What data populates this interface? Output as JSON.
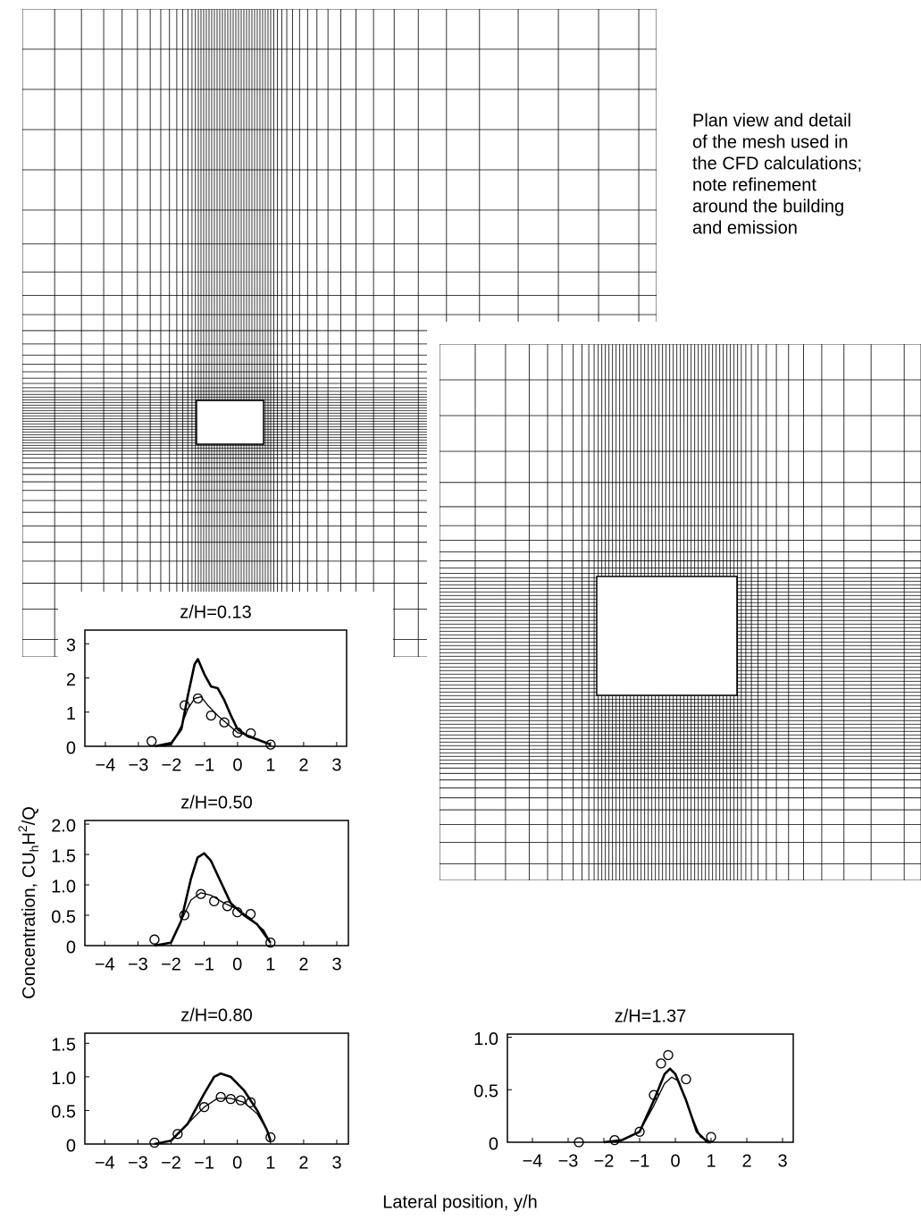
{
  "figure": {
    "annotation": [
      "Plan view and detail",
      "of the mesh used in",
      "the CFD calculations;",
      "note refinement",
      "around the building",
      "and emission"
    ],
    "xlabel": "Lateral position, y/h",
    "ylabel": {
      "text": "Concentration, CU",
      "sub": "h",
      "mid": "H",
      "sup": "2",
      "end": "/Q"
    }
  },
  "chart_data": [
    {
      "type": "line",
      "title": "z/H=0.13",
      "xlim": [
        -4.62,
        3.3
      ],
      "ylim": [
        0,
        3.4
      ],
      "xticks": [
        {
          "value": -4,
          "label": "−4"
        },
        {
          "value": -3,
          "label": "−3"
        },
        {
          "value": -2,
          "label": "−2"
        },
        {
          "value": -1,
          "label": "−1"
        },
        0,
        1,
        2,
        3
      ],
      "yticks": [
        0,
        1,
        2,
        3
      ],
      "series": [
        {
          "type": "line",
          "color": "#000000",
          "line_width": 2.6,
          "x": [
            -2.5,
            -2,
            -1.7,
            -1.5,
            -1.3,
            -1.2,
            -1.0,
            -0.8,
            -0.6,
            -0.4,
            -0.2,
            0,
            0.3,
            0.6,
            1
          ],
          "values": [
            0,
            0.1,
            0.5,
            1.5,
            2.4,
            2.55,
            2.1,
            1.75,
            1.7,
            1.35,
            0.9,
            0.5,
            0.3,
            0.2,
            0.05
          ]
        },
        {
          "type": "line",
          "color": "#000000",
          "line_width": 1.3,
          "x": [
            -2.5,
            -2,
            -1.7,
            -1.5,
            -1.3,
            -1.1,
            -0.9,
            -0.6,
            -0.3,
            0,
            0.4,
            0.7,
            1
          ],
          "values": [
            0,
            0.05,
            0.6,
            1.1,
            1.4,
            1.45,
            1.2,
            0.9,
            0.65,
            0.4,
            0.3,
            0.15,
            0.05
          ]
        },
        {
          "type": "scatter",
          "color": "#000000",
          "x": [
            -2.6,
            -1.6,
            -1.2,
            -0.8,
            -0.4,
            0,
            0.4,
            1
          ],
          "values": [
            0.15,
            1.2,
            1.4,
            0.9,
            0.7,
            0.4,
            0.38,
            0.05
          ]
        }
      ]
    },
    {
      "type": "line",
      "title": "z/H=0.50",
      "xlim": [
        -4.6,
        3.35
      ],
      "ylim": [
        0,
        2.06
      ],
      "xticks": [
        {
          "value": -4,
          "label": "−4"
        },
        {
          "value": -3,
          "label": "−3"
        },
        {
          "value": -2,
          "label": "−2"
        },
        {
          "value": -1,
          "label": "−1"
        },
        0,
        1,
        2,
        3
      ],
      "yticks": [
        0,
        0.5,
        {
          "value": 1,
          "label": "1.0"
        },
        1.5,
        {
          "value": 2,
          "label": "2.0"
        }
      ],
      "series": [
        {
          "type": "line",
          "color": "#000000",
          "line_width": 2.6,
          "x": [
            -2.5,
            -2,
            -1.7,
            -1.4,
            -1.2,
            -1,
            -0.8,
            -0.5,
            -0.2,
            0.2,
            0.6,
            1
          ],
          "values": [
            0,
            0.05,
            0.4,
            1.1,
            1.45,
            1.52,
            1.4,
            1.05,
            0.7,
            0.5,
            0.35,
            0.05
          ]
        },
        {
          "type": "line",
          "color": "#000000",
          "line_width": 1.3,
          "x": [
            -2.5,
            -2,
            -1.7,
            -1.4,
            -1.1,
            -0.8,
            -0.4,
            0,
            0.4,
            0.8,
            1
          ],
          "values": [
            0,
            0.05,
            0.4,
            0.75,
            0.87,
            0.83,
            0.7,
            0.6,
            0.45,
            0.25,
            0.05
          ]
        },
        {
          "type": "scatter",
          "color": "#000000",
          "x": [
            -2.5,
            -1.6,
            -1.1,
            -0.7,
            -0.3,
            0,
            0.4,
            1
          ],
          "values": [
            0.1,
            0.5,
            0.85,
            0.73,
            0.65,
            0.55,
            0.52,
            0.05
          ]
        }
      ]
    },
    {
      "type": "line",
      "title": "z/H=0.80",
      "xlim": [
        -4.6,
        3.35
      ],
      "ylim": [
        0,
        1.65
      ],
      "xticks": [
        {
          "value": -4,
          "label": "−4"
        },
        {
          "value": -3,
          "label": "−3"
        },
        {
          "value": -2,
          "label": "−2"
        },
        {
          "value": -1,
          "label": "−1"
        },
        0,
        1,
        2,
        3
      ],
      "yticks": [
        0,
        0.5,
        {
          "value": 1,
          "label": "1.0"
        },
        1.5
      ],
      "series": [
        {
          "type": "line",
          "color": "#000000",
          "line_width": 2.6,
          "x": [
            -2.5,
            -2,
            -1.5,
            -1,
            -0.7,
            -0.5,
            -0.2,
            0.2,
            0.6,
            0.9,
            1
          ],
          "values": [
            0,
            0.05,
            0.3,
            0.75,
            1.0,
            1.05,
            1.0,
            0.8,
            0.5,
            0.2,
            0.05
          ]
        },
        {
          "type": "line",
          "color": "#000000",
          "line_width": 1.3,
          "x": [
            -2.5,
            -2,
            -1.5,
            -1,
            -0.6,
            -0.2,
            0.2,
            0.6,
            0.9,
            1
          ],
          "values": [
            0,
            0.05,
            0.3,
            0.55,
            0.68,
            0.68,
            0.62,
            0.45,
            0.2,
            0.05
          ]
        },
        {
          "type": "scatter",
          "color": "#000000",
          "x": [
            -2.5,
            -1.8,
            -1,
            -0.5,
            -0.2,
            0.1,
            0.4,
            1
          ],
          "values": [
            0.02,
            0.15,
            0.55,
            0.7,
            0.67,
            0.65,
            0.62,
            0.1
          ]
        }
      ]
    },
    {
      "type": "line",
      "title": "z/H=1.37",
      "xlim": [
        -4.7,
        3.3
      ],
      "ylim": [
        0,
        1.03
      ],
      "xticks": [
        {
          "value": -4,
          "label": "−4"
        },
        {
          "value": -3,
          "label": "−3"
        },
        {
          "value": -2,
          "label": "−2"
        },
        {
          "value": -1,
          "label": "−1"
        },
        0,
        1,
        2,
        3
      ],
      "yticks": [
        0,
        0.5,
        {
          "value": 1,
          "label": "1.0"
        }
      ],
      "series": [
        {
          "type": "line",
          "color": "#000000",
          "line_width": 2.6,
          "x": [
            -2,
            -1.5,
            -1,
            -0.6,
            -0.3,
            -0.15,
            0,
            0.3,
            0.6,
            0.9,
            1
          ],
          "values": [
            0,
            0.02,
            0.1,
            0.4,
            0.65,
            0.7,
            0.65,
            0.4,
            0.1,
            0,
            0
          ]
        },
        {
          "type": "line",
          "color": "#000000",
          "line_width": 1.3,
          "x": [
            -2,
            -1.5,
            -1,
            -0.6,
            -0.3,
            -0.1,
            0.1,
            0.4,
            0.7,
            1
          ],
          "values": [
            0,
            0.02,
            0.1,
            0.35,
            0.56,
            0.62,
            0.58,
            0.3,
            0.05,
            0
          ]
        },
        {
          "type": "scatter",
          "color": "#000000",
          "x": [
            -2.7,
            -1.7,
            -1,
            -0.6,
            -0.4,
            -0.2,
            0.3,
            1
          ],
          "values": [
            0,
            0.02,
            0.1,
            0.45,
            0.75,
            0.83,
            0.6,
            0.05
          ]
        }
      ]
    }
  ]
}
